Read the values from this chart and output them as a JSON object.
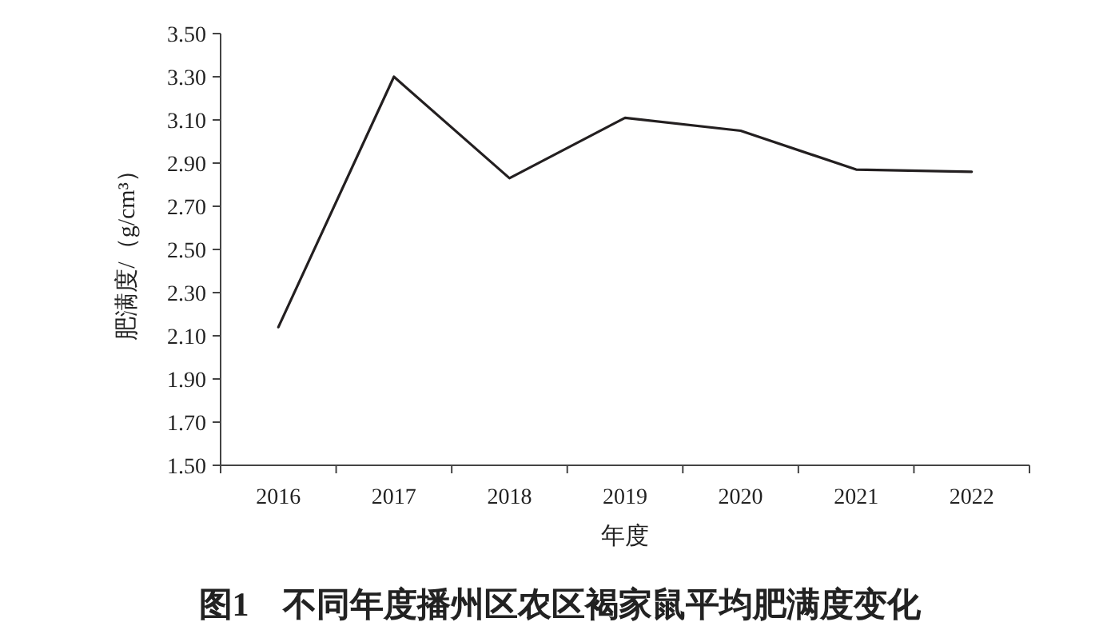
{
  "chart_data": {
    "type": "line",
    "title": "图1　不同年度播州区农区褐家鼠平均肥满度变化",
    "xlabel": "年度",
    "ylabel": "肥满度/（g/cm³）",
    "categories": [
      "2016",
      "2017",
      "2018",
      "2019",
      "2020",
      "2021",
      "2022"
    ],
    "series": [
      {
        "color": "#231f20",
        "values": [
          2.14,
          3.3,
          2.83,
          3.11,
          3.05,
          2.87,
          2.86
        ]
      }
    ],
    "ylim": [
      1.5,
      3.5
    ],
    "yticks": [
      {
        "value": 1.5,
        "label": "1.50"
      },
      {
        "value": 1.7,
        "label": "1.70"
      },
      {
        "value": 1.9,
        "label": "1.90"
      },
      {
        "value": 2.1,
        "label": "2.10"
      },
      {
        "value": 2.3,
        "label": "2.30"
      },
      {
        "value": 2.5,
        "label": "2.50"
      },
      {
        "value": 2.7,
        "label": "2.70"
      },
      {
        "value": 2.9,
        "label": "2.90"
      },
      {
        "value": 3.1,
        "label": "3.10"
      },
      {
        "value": 3.3,
        "label": "3.30"
      },
      {
        "value": 3.5,
        "label": "3.50"
      }
    ],
    "grid": false,
    "marker": "none",
    "line_style": "solid"
  }
}
